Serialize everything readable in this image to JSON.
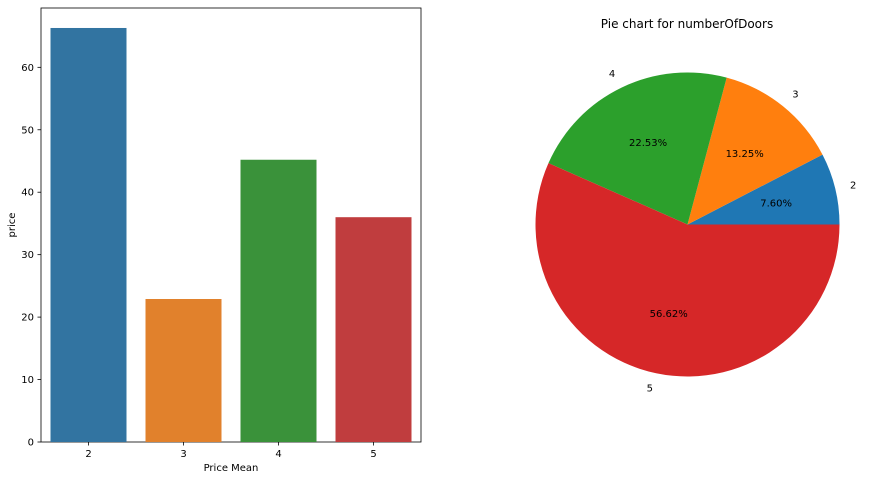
{
  "chart_data": [
    {
      "type": "bar",
      "title": "",
      "xlabel": "Price Mean",
      "ylabel": "price",
      "categories": [
        "2",
        "3",
        "4",
        "5"
      ],
      "values": [
        66.3,
        22.9,
        45.2,
        36.0
      ],
      "colors": [
        "#3274a1",
        "#e1812c",
        "#3a923a",
        "#c03d3e"
      ],
      "ylim": [
        0,
        69.5
      ],
      "yticks": [
        0,
        10,
        20,
        30,
        40,
        50,
        60
      ],
      "ytick_labels": [
        "0",
        "10",
        "20",
        "30",
        "40",
        "50",
        "60"
      ],
      "grid": false
    },
    {
      "type": "pie",
      "title": "Pie chart for numberOfDoors",
      "labels": [
        "2",
        "3",
        "4",
        "5"
      ],
      "values": [
        7.6,
        13.25,
        22.53,
        56.62
      ],
      "value_labels": [
        "7.60%",
        "13.25%",
        "22.53%",
        "56.62%"
      ],
      "colors": [
        "#1f77b4",
        "#ff7f0e",
        "#2ca02c",
        "#d62728"
      ],
      "start_angle": 0,
      "direction": "counterclockwise"
    }
  ]
}
